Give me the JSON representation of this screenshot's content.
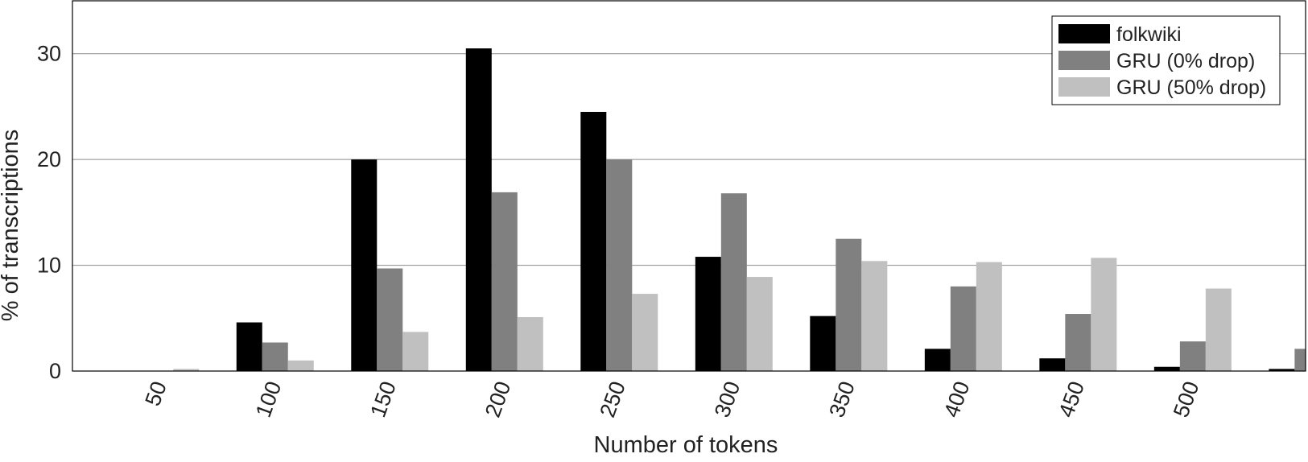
{
  "chart_data": {
    "type": "bar",
    "categories": [
      "50",
      "100",
      "150",
      "200",
      "250",
      "300",
      "350",
      "400",
      "450",
      "500",
      ""
    ],
    "series": [
      {
        "name": "folkwiki",
        "color": "#000000",
        "values": [
          0,
          4.6,
          20.0,
          30.5,
          24.5,
          10.8,
          5.2,
          2.1,
          1.2,
          0.4,
          0.2
        ]
      },
      {
        "name": "GRU (0% drop)",
        "color": "#808080",
        "values": [
          0,
          2.7,
          9.7,
          16.9,
          20.0,
          16.8,
          12.5,
          8.0,
          5.4,
          2.8,
          2.1
        ]
      },
      {
        "name": "GRU (50% drop)",
        "color": "#c0c0c0",
        "values": [
          0.2,
          1.0,
          3.7,
          5.1,
          7.3,
          8.9,
          10.4,
          10.3,
          10.7,
          7.8,
          0
        ]
      }
    ],
    "title": "",
    "xlabel": "Number of tokens",
    "ylabel": "% of transcriptions",
    "ylim": [
      0,
      35
    ],
    "yticks": [
      0,
      10,
      20,
      30
    ],
    "grid": "horizontal",
    "legend_position": "top-right"
  }
}
